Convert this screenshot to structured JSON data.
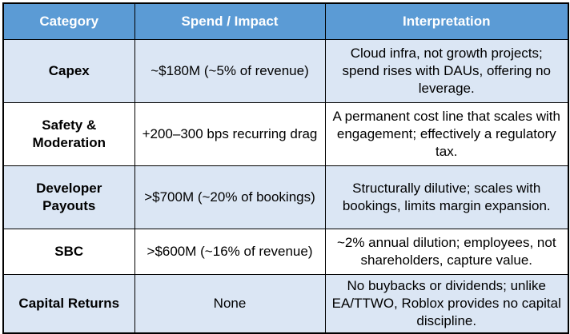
{
  "headers": [
    "Category",
    "Spend / Impact",
    "Interpretation"
  ],
  "rows": [
    {
      "category": "Capex",
      "spend": "~$180M (~5% of revenue)",
      "interpretation": "Cloud infra, not growth projects; spend rises with DAUs, offering no leverage."
    },
    {
      "category": "Safety & Moderation",
      "spend": "+200–300 bps recurring drag",
      "interpretation": "A permanent cost line that scales with engagement; effectively a regulatory tax."
    },
    {
      "category": "Developer Payouts",
      "spend": ">$700M (~20% of bookings)",
      "interpretation": "Structurally dilutive; scales with bookings, limits margin expansion."
    },
    {
      "category": "SBC",
      "spend": ">$600M (~16% of revenue)",
      "interpretation": "~2% annual dilution; employees, not shareholders, capture value."
    },
    {
      "category": "Capital Returns",
      "spend": "None",
      "interpretation": "No buybacks or dividends; unlike EA/TTWO, Roblox provides no capital discipline."
    }
  ],
  "colors": {
    "header_bg": "#5b9bd5",
    "header_text": "#ffffff",
    "band_row": "#dbe6f4",
    "plain_row": "#ffffff",
    "border": "#000000"
  }
}
